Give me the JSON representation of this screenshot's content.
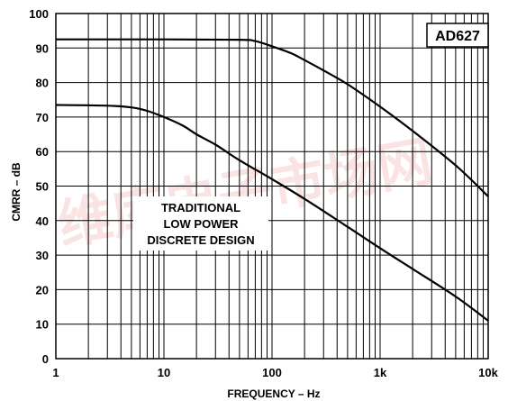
{
  "chart_data": {
    "type": "line",
    "title": "",
    "xlabel": "FREQUENCY – Hz",
    "ylabel": "CMRR – dB",
    "x_scale": "log",
    "xlim": [
      1,
      10000
    ],
    "ylim": [
      0,
      100
    ],
    "x_ticks": [
      {
        "value": 1,
        "label": "1"
      },
      {
        "value": 10,
        "label": "10"
      },
      {
        "value": 100,
        "label": "100"
      },
      {
        "value": 1000,
        "label": "1k"
      },
      {
        "value": 10000,
        "label": "10k"
      }
    ],
    "y_ticks": [
      0,
      10,
      20,
      30,
      40,
      50,
      60,
      70,
      80,
      90,
      100
    ],
    "grid": true,
    "series": [
      {
        "x": [
          1,
          10,
          50,
          70,
          100,
          150,
          200,
          300,
          500,
          1000,
          2000,
          5000,
          10000
        ],
        "y": [
          92.5,
          92.5,
          92.4,
          92.0,
          90.5,
          88.5,
          86.5,
          83.5,
          79.5,
          73.0,
          66.0,
          56.0,
          47.0
        ],
        "color": "#000000"
      },
      {
        "x": [
          1,
          3,
          5,
          7,
          10,
          15,
          20,
          30,
          50,
          100,
          200,
          500,
          1000,
          2000,
          5000,
          10000
        ],
        "y": [
          73.5,
          73.3,
          72.8,
          71.8,
          70.0,
          67.5,
          65.0,
          62.0,
          57.5,
          52.0,
          46.3,
          38.2,
          32.0,
          26.0,
          18.0,
          11.0
        ],
        "color": "#000000"
      }
    ],
    "annotations": [
      {
        "text_lines": [
          "TRADITIONAL",
          "LOW POWER",
          "DISCRETE DESIGN"
        ]
      },
      {
        "text": "AD627",
        "boxed": true
      }
    ]
  }
}
